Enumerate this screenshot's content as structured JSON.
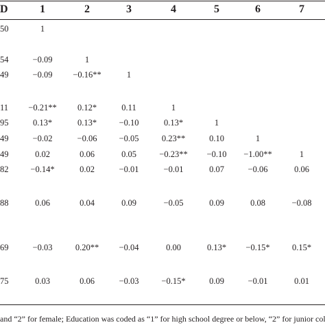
{
  "table": {
    "header": {
      "sd": "D",
      "cols": [
        "1",
        "2",
        "3",
        "4",
        "5",
        "6",
        "7"
      ]
    },
    "rows": [
      {
        "sd": "50",
        "cells": [
          "1",
          "",
          "",
          "",
          "",
          "",
          ""
        ]
      },
      {
        "sd": "54",
        "cells": [
          "−0.09",
          "1",
          "",
          "",
          "",
          "",
          ""
        ]
      },
      {
        "sd": "49",
        "cells": [
          "−0.09",
          "−0.16**",
          "1",
          "",
          "",
          "",
          ""
        ]
      },
      {
        "sd": "11",
        "cells": [
          "−0.21**",
          "0.12*",
          "0.11",
          "1",
          "",
          "",
          ""
        ]
      },
      {
        "sd": "95",
        "cells": [
          "0.13*",
          "0.13*",
          "−0.10",
          "0.13*",
          "1",
          "",
          ""
        ]
      },
      {
        "sd": "49",
        "cells": [
          "−0.02",
          "−0.06",
          "−0.05",
          "0.23**",
          "0.10",
          "1",
          ""
        ]
      },
      {
        "sd": "49",
        "cells": [
          "0.02",
          "0.06",
          "0.05",
          "−0.23**",
          "−0.10",
          "−1.00**",
          "1"
        ]
      },
      {
        "sd": "82",
        "cells": [
          "−0.14*",
          "0.02",
          "−0.01",
          "−0.01",
          "0.07",
          "−0.06",
          "0.06"
        ]
      },
      {
        "sd": "88",
        "cells": [
          "0.06",
          "0.04",
          "0.09",
          "−0.05",
          "0.09",
          "0.08",
          "−0.08"
        ]
      },
      {
        "sd": "69",
        "cells": [
          "−0.03",
          "0.20**",
          "−0.04",
          "0.00",
          "0.13*",
          "−0.15*",
          "0.15*"
        ]
      },
      {
        "sd": "75",
        "cells": [
          "0.03",
          "0.06",
          "−0.03",
          "−0.15*",
          "0.09",
          "−0.01",
          "0.01"
        ]
      }
    ]
  },
  "footnote": "and “2” for female; Education was coded as “1” for high school degree or below, “2” for junior coll"
}
